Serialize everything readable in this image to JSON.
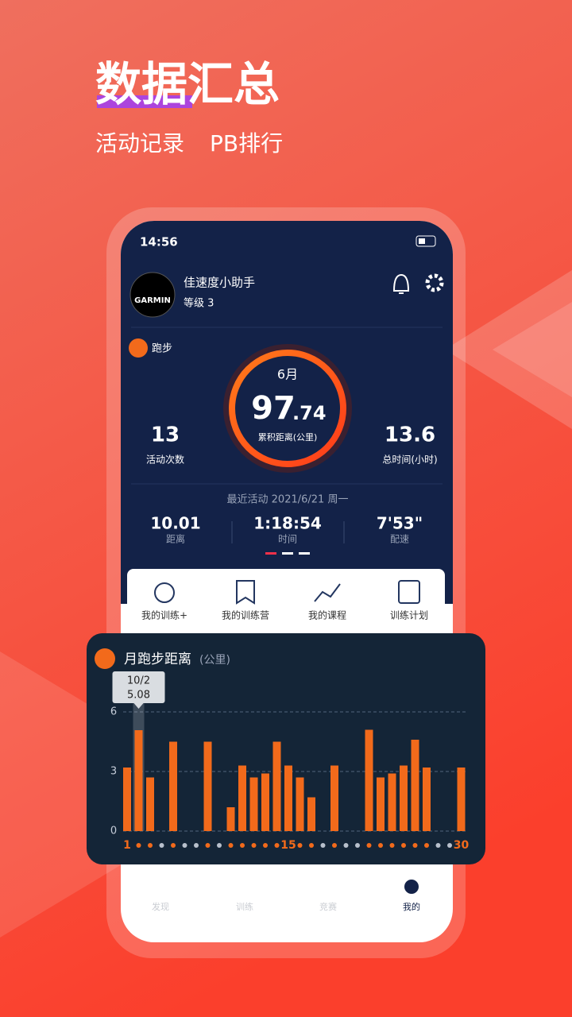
{
  "header": {
    "title": "数据汇总",
    "subtitle": [
      "活动记录",
      "PB排行"
    ]
  },
  "status_bar": {
    "time": "14:56"
  },
  "profile": {
    "logo": "GARMIN",
    "name": "佳速度小助手",
    "level": "等级 3"
  },
  "summary": {
    "sport": "跑步",
    "month": "6月",
    "distance_main": "97",
    "distance_fraction": ".74",
    "distance_label": "累积距离(公里)",
    "count": "13",
    "count_label": "活动次数",
    "time": "13.6",
    "time_label": "总时间(小时)"
  },
  "recent": {
    "title": "最近活动 2021/6/21 周一",
    "stats": [
      {
        "value": "10.01",
        "label": "距离"
      },
      {
        "value": "1:18:54",
        "label": "时间"
      },
      {
        "value": "7'53\"",
        "label": "配速"
      }
    ]
  },
  "menu": [
    "我的训练+",
    "我的训练营",
    "我的课程",
    "训练计划"
  ],
  "tabs": [
    "发现",
    "训练",
    "竞赛",
    "我的"
  ],
  "chart_data": {
    "type": "bar",
    "title": "月跑步距离",
    "unit": "(公里)",
    "tooltip_label": "10/2",
    "categories": [
      "1",
      null,
      null,
      null,
      null,
      null,
      null,
      null,
      null,
      null,
      null,
      null,
      null,
      null,
      "15",
      null,
      null,
      null,
      null,
      null,
      null,
      null,
      null,
      null,
      null,
      null,
      null,
      null,
      null,
      "30"
    ],
    "values": [
      3.2,
      5.08,
      2.7,
      0,
      4.5,
      0,
      0,
      4.5,
      0,
      1.2,
      3.3,
      2.7,
      2.9,
      4.5,
      3.3,
      2.7,
      1.7,
      0,
      3.3,
      0,
      0,
      5.1,
      2.7,
      2.9,
      3.3,
      4.6,
      3.2,
      0,
      0,
      3.2
    ],
    "color": "#f26a1b",
    "ylim": [
      0,
      7
    ],
    "yticks": [
      0,
      3,
      6
    ],
    "grid": true
  }
}
